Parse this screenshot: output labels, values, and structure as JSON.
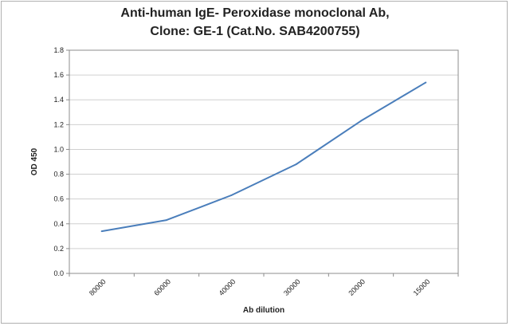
{
  "chart_data": {
    "type": "line",
    "title_line1": "Anti-human IgE- Peroxidase monoclonal Ab,",
    "title_line2": "Clone: GE-1 (Cat.No. SAB4200755)",
    "xlabel": "Ab dilution",
    "ylabel": "OD 450",
    "categories": [
      "80000",
      "60000",
      "40000",
      "30000",
      "20000",
      "15000"
    ],
    "y_ticks": [
      "0.0",
      "0.2",
      "0.4",
      "0.6",
      "0.8",
      "1.0",
      "1.2",
      "1.4",
      "1.6",
      "1.8"
    ],
    "ylim": [
      0,
      1.8
    ],
    "series": [
      {
        "values": [
          0.34,
          0.43,
          0.63,
          0.88,
          1.23,
          1.54
        ],
        "color": "#4a7ebb"
      }
    ],
    "grid": "horizontal",
    "legend": "none",
    "plot_border_color": "#8c8c8c",
    "grid_color": "#d0d0d0"
  }
}
